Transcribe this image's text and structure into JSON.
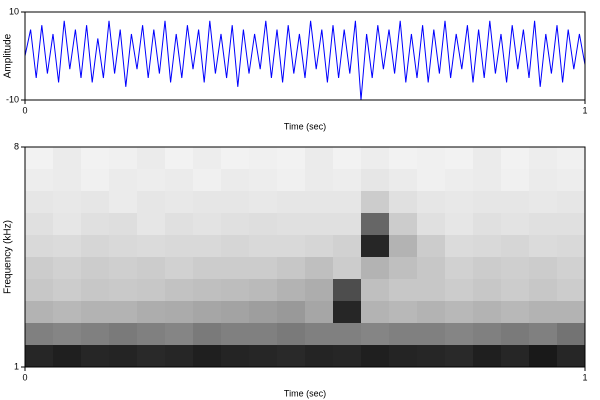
{
  "chart_data": [
    {
      "type": "line",
      "ylabel": "Amplitude",
      "xlabel": "Time (sec)",
      "xlim": [
        0,
        1
      ],
      "xticks": [
        0,
        1
      ],
      "ylim": [
        -10,
        10
      ],
      "yticks": [
        -10,
        10
      ],
      "x": [
        0,
        0.01,
        0.02,
        0.03,
        0.04,
        0.05,
        0.06,
        0.07,
        0.08,
        0.09,
        0.1,
        0.11,
        0.12,
        0.13,
        0.14,
        0.15,
        0.16,
        0.17,
        0.18,
        0.19,
        0.2,
        0.21,
        0.22,
        0.23,
        0.24,
        0.25,
        0.26,
        0.27,
        0.28,
        0.29,
        0.3,
        0.31,
        0.32,
        0.33,
        0.34,
        0.35,
        0.36,
        0.37,
        0.38,
        0.39,
        0.4,
        0.41,
        0.42,
        0.43,
        0.44,
        0.45,
        0.46,
        0.47,
        0.48,
        0.49,
        0.5,
        0.51,
        0.52,
        0.53,
        0.54,
        0.55,
        0.56,
        0.57,
        0.58,
        0.59,
        0.6,
        0.61,
        0.62,
        0.63,
        0.64,
        0.65,
        0.66,
        0.67,
        0.68,
        0.69,
        0.7,
        0.71,
        0.72,
        0.73,
        0.74,
        0.75,
        0.76,
        0.77,
        0.78,
        0.79,
        0.8,
        0.81,
        0.82,
        0.83,
        0.84,
        0.85,
        0.86,
        0.87,
        0.88,
        0.89,
        0.9,
        0.91,
        0.92,
        0.93,
        0.94,
        0.95,
        0.96,
        0.97,
        0.98,
        0.99,
        1
      ],
      "series": [
        {
          "color": "#0000ff",
          "values": [
            0,
            6,
            -5,
            7,
            -4,
            5,
            -6,
            8,
            -3,
            6,
            -5,
            7,
            -6,
            4,
            -5,
            8,
            -4,
            6,
            -7,
            5,
            -3,
            7,
            -5,
            6,
            -4,
            8,
            -6,
            5,
            -5,
            7,
            -3,
            6,
            -6,
            8,
            -4,
            5,
            -5,
            7,
            -7,
            6,
            -4,
            5,
            -3,
            8,
            -5,
            6,
            -6,
            7,
            -4,
            5,
            -5,
            8,
            -3,
            6,
            -6,
            7,
            -5,
            6,
            -4,
            8,
            -10,
            5,
            -5,
            7,
            -3,
            6,
            -4,
            8,
            -6,
            5,
            -5,
            7,
            -6,
            6,
            -4,
            8,
            -5,
            5,
            -3,
            7,
            -6,
            6,
            -5,
            8,
            -4,
            5,
            -6,
            7,
            -3,
            6,
            -5,
            8,
            -7,
            5,
            -4,
            7,
            -6,
            6,
            -3,
            5,
            -2
          ]
        }
      ]
    },
    {
      "type": "heatmap",
      "ylabel": "Frequency (kHz)",
      "xlabel": "Time (sec)",
      "xlim": [
        0,
        1
      ],
      "xticks": [
        0,
        1
      ],
      "ylim": [
        1,
        8
      ],
      "yticks": [
        1,
        8
      ],
      "z": [
        [
          0.05,
          0.08,
          0.05,
          0.06,
          0.08,
          0.05,
          0.07,
          0.05,
          0.06,
          0.05,
          0.08,
          0.05,
          0.07,
          0.05,
          0.06,
          0.05,
          0.08,
          0.05,
          0.07,
          0.06
        ],
        [
          0.07,
          0.08,
          0.06,
          0.08,
          0.07,
          0.08,
          0.06,
          0.08,
          0.07,
          0.06,
          0.08,
          0.07,
          0.1,
          0.08,
          0.06,
          0.07,
          0.08,
          0.06,
          0.08,
          0.07
        ],
        [
          0.1,
          0.09,
          0.1,
          0.08,
          0.1,
          0.09,
          0.1,
          0.1,
          0.09,
          0.1,
          0.1,
          0.1,
          0.2,
          0.12,
          0.1,
          0.09,
          0.1,
          0.1,
          0.09,
          0.1
        ],
        [
          0.12,
          0.1,
          0.12,
          0.13,
          0.1,
          0.12,
          0.11,
          0.12,
          0.13,
          0.12,
          0.12,
          0.12,
          0.6,
          0.2,
          0.12,
          0.1,
          0.12,
          0.11,
          0.12,
          0.12
        ],
        [
          0.15,
          0.14,
          0.16,
          0.15,
          0.14,
          0.15,
          0.15,
          0.16,
          0.15,
          0.15,
          0.16,
          0.18,
          0.85,
          0.3,
          0.2,
          0.14,
          0.15,
          0.16,
          0.14,
          0.15
        ],
        [
          0.2,
          0.18,
          0.2,
          0.19,
          0.2,
          0.18,
          0.2,
          0.2,
          0.2,
          0.22,
          0.25,
          0.2,
          0.3,
          0.25,
          0.22,
          0.18,
          0.2,
          0.19,
          0.2,
          0.18
        ],
        [
          0.22,
          0.2,
          0.22,
          0.21,
          0.22,
          0.24,
          0.25,
          0.26,
          0.27,
          0.3,
          0.32,
          0.7,
          0.25,
          0.22,
          0.22,
          0.2,
          0.22,
          0.2,
          0.22,
          0.2
        ],
        [
          0.3,
          0.28,
          0.3,
          0.3,
          0.32,
          0.33,
          0.35,
          0.36,
          0.38,
          0.4,
          0.35,
          0.85,
          0.3,
          0.28,
          0.3,
          0.28,
          0.3,
          0.28,
          0.3,
          0.3
        ],
        [
          0.5,
          0.48,
          0.5,
          0.52,
          0.5,
          0.48,
          0.52,
          0.5,
          0.5,
          0.52,
          0.5,
          0.5,
          0.48,
          0.5,
          0.5,
          0.48,
          0.5,
          0.52,
          0.5,
          0.55
        ],
        [
          0.85,
          0.88,
          0.85,
          0.86,
          0.84,
          0.85,
          0.88,
          0.86,
          0.85,
          0.84,
          0.86,
          0.85,
          0.88,
          0.86,
          0.85,
          0.84,
          0.88,
          0.85,
          0.9,
          0.85
        ]
      ]
    }
  ]
}
